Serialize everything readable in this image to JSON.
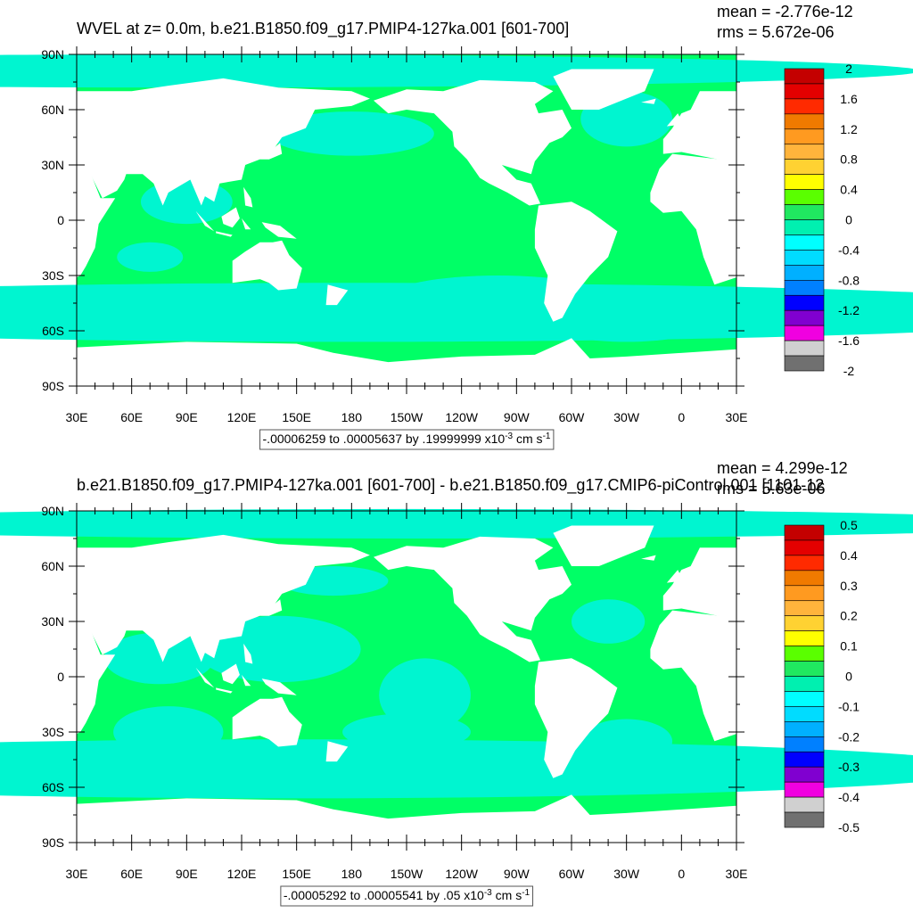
{
  "panels": [
    {
      "title": "WVEL at z=   0.0m, b.e21.B1850.f09_g17.PMIP4-127ka.001 [601-700]",
      "stats": [
        "mean = -2.776e-12",
        "rms = 5.672e-06"
      ],
      "lat_labels": [
        "90N",
        "60N",
        "30N",
        "0",
        "30S",
        "60S",
        "90S"
      ],
      "lon_labels": [
        "30E",
        "60E",
        "90E",
        "120E",
        "150E",
        "180",
        "150W",
        "120W",
        "90W",
        "60W",
        "30W",
        "0",
        "30E"
      ],
      "colorbar": {
        "colors": [
          "#c40000",
          "#e40000",
          "#ff2a00",
          "#f07a00",
          "#ff9a20",
          "#ffb43c",
          "#ffd232",
          "#ffff00",
          "#5aff00",
          "#20e860",
          "#00f0b0",
          "#00ffff",
          "#00dcff",
          "#00b0ff",
          "#0080ff",
          "#0000ff",
          "#8000d0",
          "#f000e0",
          "#d0d0d0",
          "#707070"
        ],
        "labels": [
          "2",
          "1.6",
          "1.2",
          "0.8",
          "0.4",
          "0",
          "-0.4",
          "-0.8",
          "-1.2",
          "-1.6",
          "-2"
        ]
      },
      "caption": {
        "text": "-.00006259 to .00005637 by .19999999 x10",
        "exp": "-3",
        "unit": " cm s",
        "unit_exp": "-1"
      }
    },
    {
      "title": "b.e21.B1850.f09_g17.PMIP4-127ka.001 [601-700] - b.e21.B1850.f09_g17.CMIP6-piControl.001 [1101-12",
      "stats": [
        "mean = 4.299e-12",
        "rms = 5.63e-06"
      ],
      "lat_labels": [
        "90N",
        "60N",
        "30N",
        "0",
        "30S",
        "60S",
        "90S"
      ],
      "lon_labels": [
        "30E",
        "60E",
        "90E",
        "120E",
        "150E",
        "180",
        "150W",
        "120W",
        "90W",
        "60W",
        "30W",
        "0",
        "30E"
      ],
      "colorbar": {
        "colors": [
          "#c40000",
          "#e40000",
          "#ff2a00",
          "#f07a00",
          "#ff9a20",
          "#ffb43c",
          "#ffd232",
          "#ffff00",
          "#5aff00",
          "#20e860",
          "#00f0b0",
          "#00ffff",
          "#00dcff",
          "#00b0ff",
          "#0080ff",
          "#0000ff",
          "#8000d0",
          "#f000e0",
          "#d0d0d0",
          "#707070"
        ],
        "labels": [
          "0.5",
          "0.4",
          "0.3",
          "0.2",
          "0.1",
          "0",
          "-0.1",
          "-0.2",
          "-0.3",
          "-0.4",
          "-0.5"
        ]
      },
      "caption": {
        "text": "-.00005292 to .00005541 by .05 x10",
        "exp": "-3",
        "unit": " cm s",
        "unit_exp": "-1"
      }
    }
  ]
}
